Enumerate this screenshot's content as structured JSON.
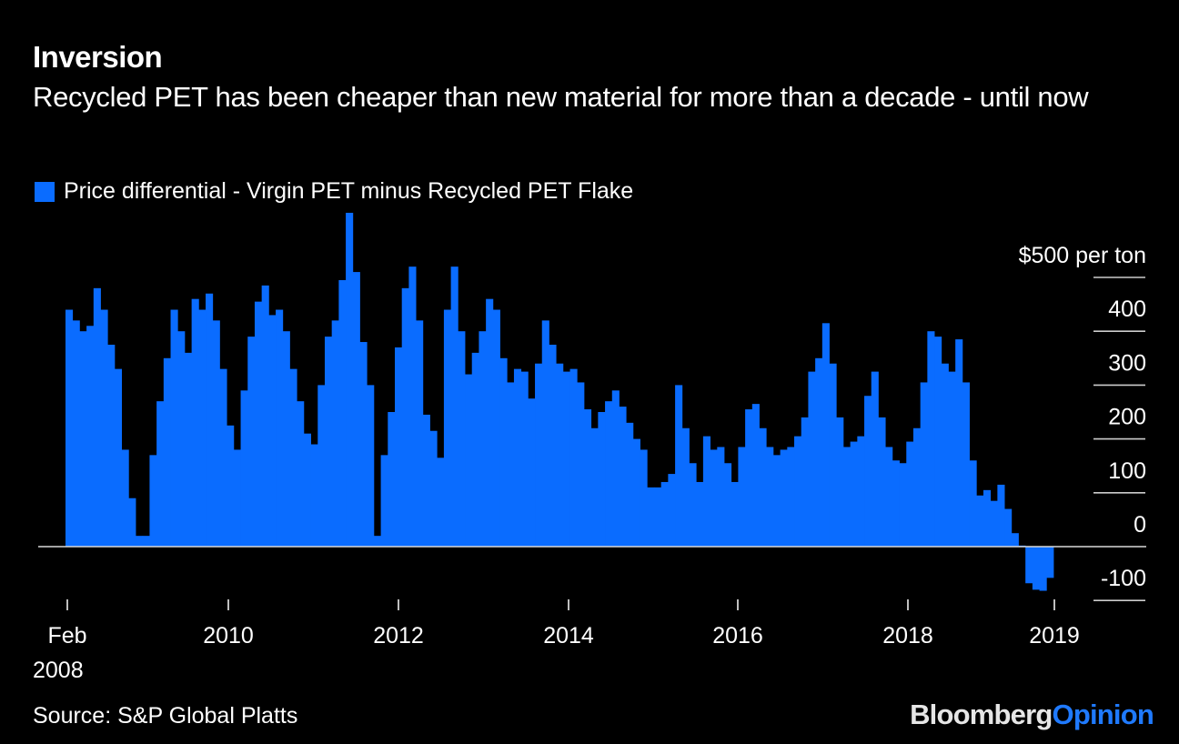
{
  "header": {
    "title": "Inversion",
    "subtitle": "Recycled PET has been cheaper than new material for more than a decade - until now"
  },
  "legend": {
    "label": "Price differential - Virgin PET minus Recycled PET Flake",
    "color": "#0a6cff"
  },
  "footer": {
    "source": "Source: S&P Global Platts",
    "brand_part1": "Bloomberg",
    "brand_part2": "Opinion"
  },
  "colors": {
    "background": "#000000",
    "bar": "#0a6cff",
    "zero_line": "#d9d9d9",
    "grid": "#cccccc",
    "text": "#ffffff",
    "brand_accent": "#1f7aff"
  },
  "chart_data": {
    "type": "bar",
    "title": "Inversion",
    "subtitle": "Recycled PET has been cheaper than new material for more than a decade - until now",
    "xlabel": "",
    "ylabel": "$ per ton",
    "y_unit_label": "$500 per ton",
    "ylim": [
      -100,
      500
    ],
    "yticks": [
      {
        "value": 500,
        "label": "$500 per ton"
      },
      {
        "value": 400,
        "label": "400"
      },
      {
        "value": 300,
        "label": "300"
      },
      {
        "value": 200,
        "label": "200"
      },
      {
        "value": 100,
        "label": "100"
      },
      {
        "value": 0,
        "label": "0"
      },
      {
        "value": -100,
        "label": "-100"
      }
    ],
    "y_axis_side": "right",
    "grid": true,
    "legend_position": "top-left",
    "xticks": [
      {
        "date": "2008-02",
        "label": "Feb",
        "label2": "2008"
      },
      {
        "date": "2010-01",
        "label": "2010"
      },
      {
        "date": "2012-01",
        "label": "2012"
      },
      {
        "date": "2014-01",
        "label": "2014"
      },
      {
        "date": "2016-01",
        "label": "2016"
      },
      {
        "date": "2018-01",
        "label": "2018"
      },
      {
        "date": "2019-01",
        "label": "2019"
      }
    ],
    "series": [
      {
        "name": "Price differential - Virgin PET minus Recycled PET Flake",
        "start": "2008-02",
        "frequency": "monthly",
        "values": [
          440,
          420,
          400,
          410,
          480,
          440,
          375,
          330,
          180,
          90,
          20,
          20,
          170,
          270,
          350,
          440,
          400,
          360,
          460,
          440,
          470,
          420,
          330,
          225,
          180,
          290,
          390,
          455,
          485,
          430,
          440,
          400,
          330,
          270,
          210,
          190,
          300,
          390,
          420,
          495,
          620,
          510,
          380,
          300,
          20,
          170,
          250,
          370,
          480,
          520,
          420,
          245,
          215,
          165,
          440,
          520,
          400,
          320,
          360,
          400,
          460,
          440,
          350,
          305,
          330,
          325,
          275,
          340,
          420,
          375,
          340,
          325,
          330,
          305,
          255,
          220,
          250,
          270,
          290,
          260,
          230,
          200,
          180,
          110,
          110,
          120,
          135,
          300,
          220,
          155,
          120,
          205,
          180,
          185,
          155,
          120,
          185,
          255,
          265,
          220,
          185,
          170,
          180,
          185,
          205,
          240,
          325,
          350,
          415,
          340,
          240,
          185,
          195,
          205,
          280,
          325,
          240,
          185,
          160,
          155,
          195,
          220,
          305,
          400,
          390,
          340,
          325,
          385,
          305,
          160,
          95,
          105,
          85,
          115,
          70,
          25,
          2,
          -68,
          -80,
          -82,
          -58
        ]
      }
    ]
  }
}
